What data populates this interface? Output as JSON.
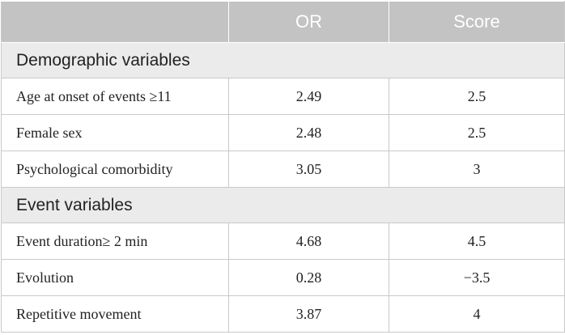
{
  "table": {
    "columns": [
      "OR",
      "Score"
    ],
    "sections": [
      {
        "title": "Demographic variables",
        "rows": [
          [
            "Age at onset of events ≥11",
            "2.49",
            "2.5"
          ],
          [
            "Female sex",
            "2.48",
            "2.5"
          ],
          [
            "Psychological comorbidity",
            "3.05",
            "3"
          ]
        ]
      },
      {
        "title": "Event variables",
        "rows": [
          [
            "Event duration≥ 2 min",
            "4.68",
            "4.5"
          ],
          [
            "Evolution",
            "0.28",
            "−3.5"
          ],
          [
            "Repetitive movement",
            "3.87",
            "4"
          ]
        ]
      }
    ]
  }
}
